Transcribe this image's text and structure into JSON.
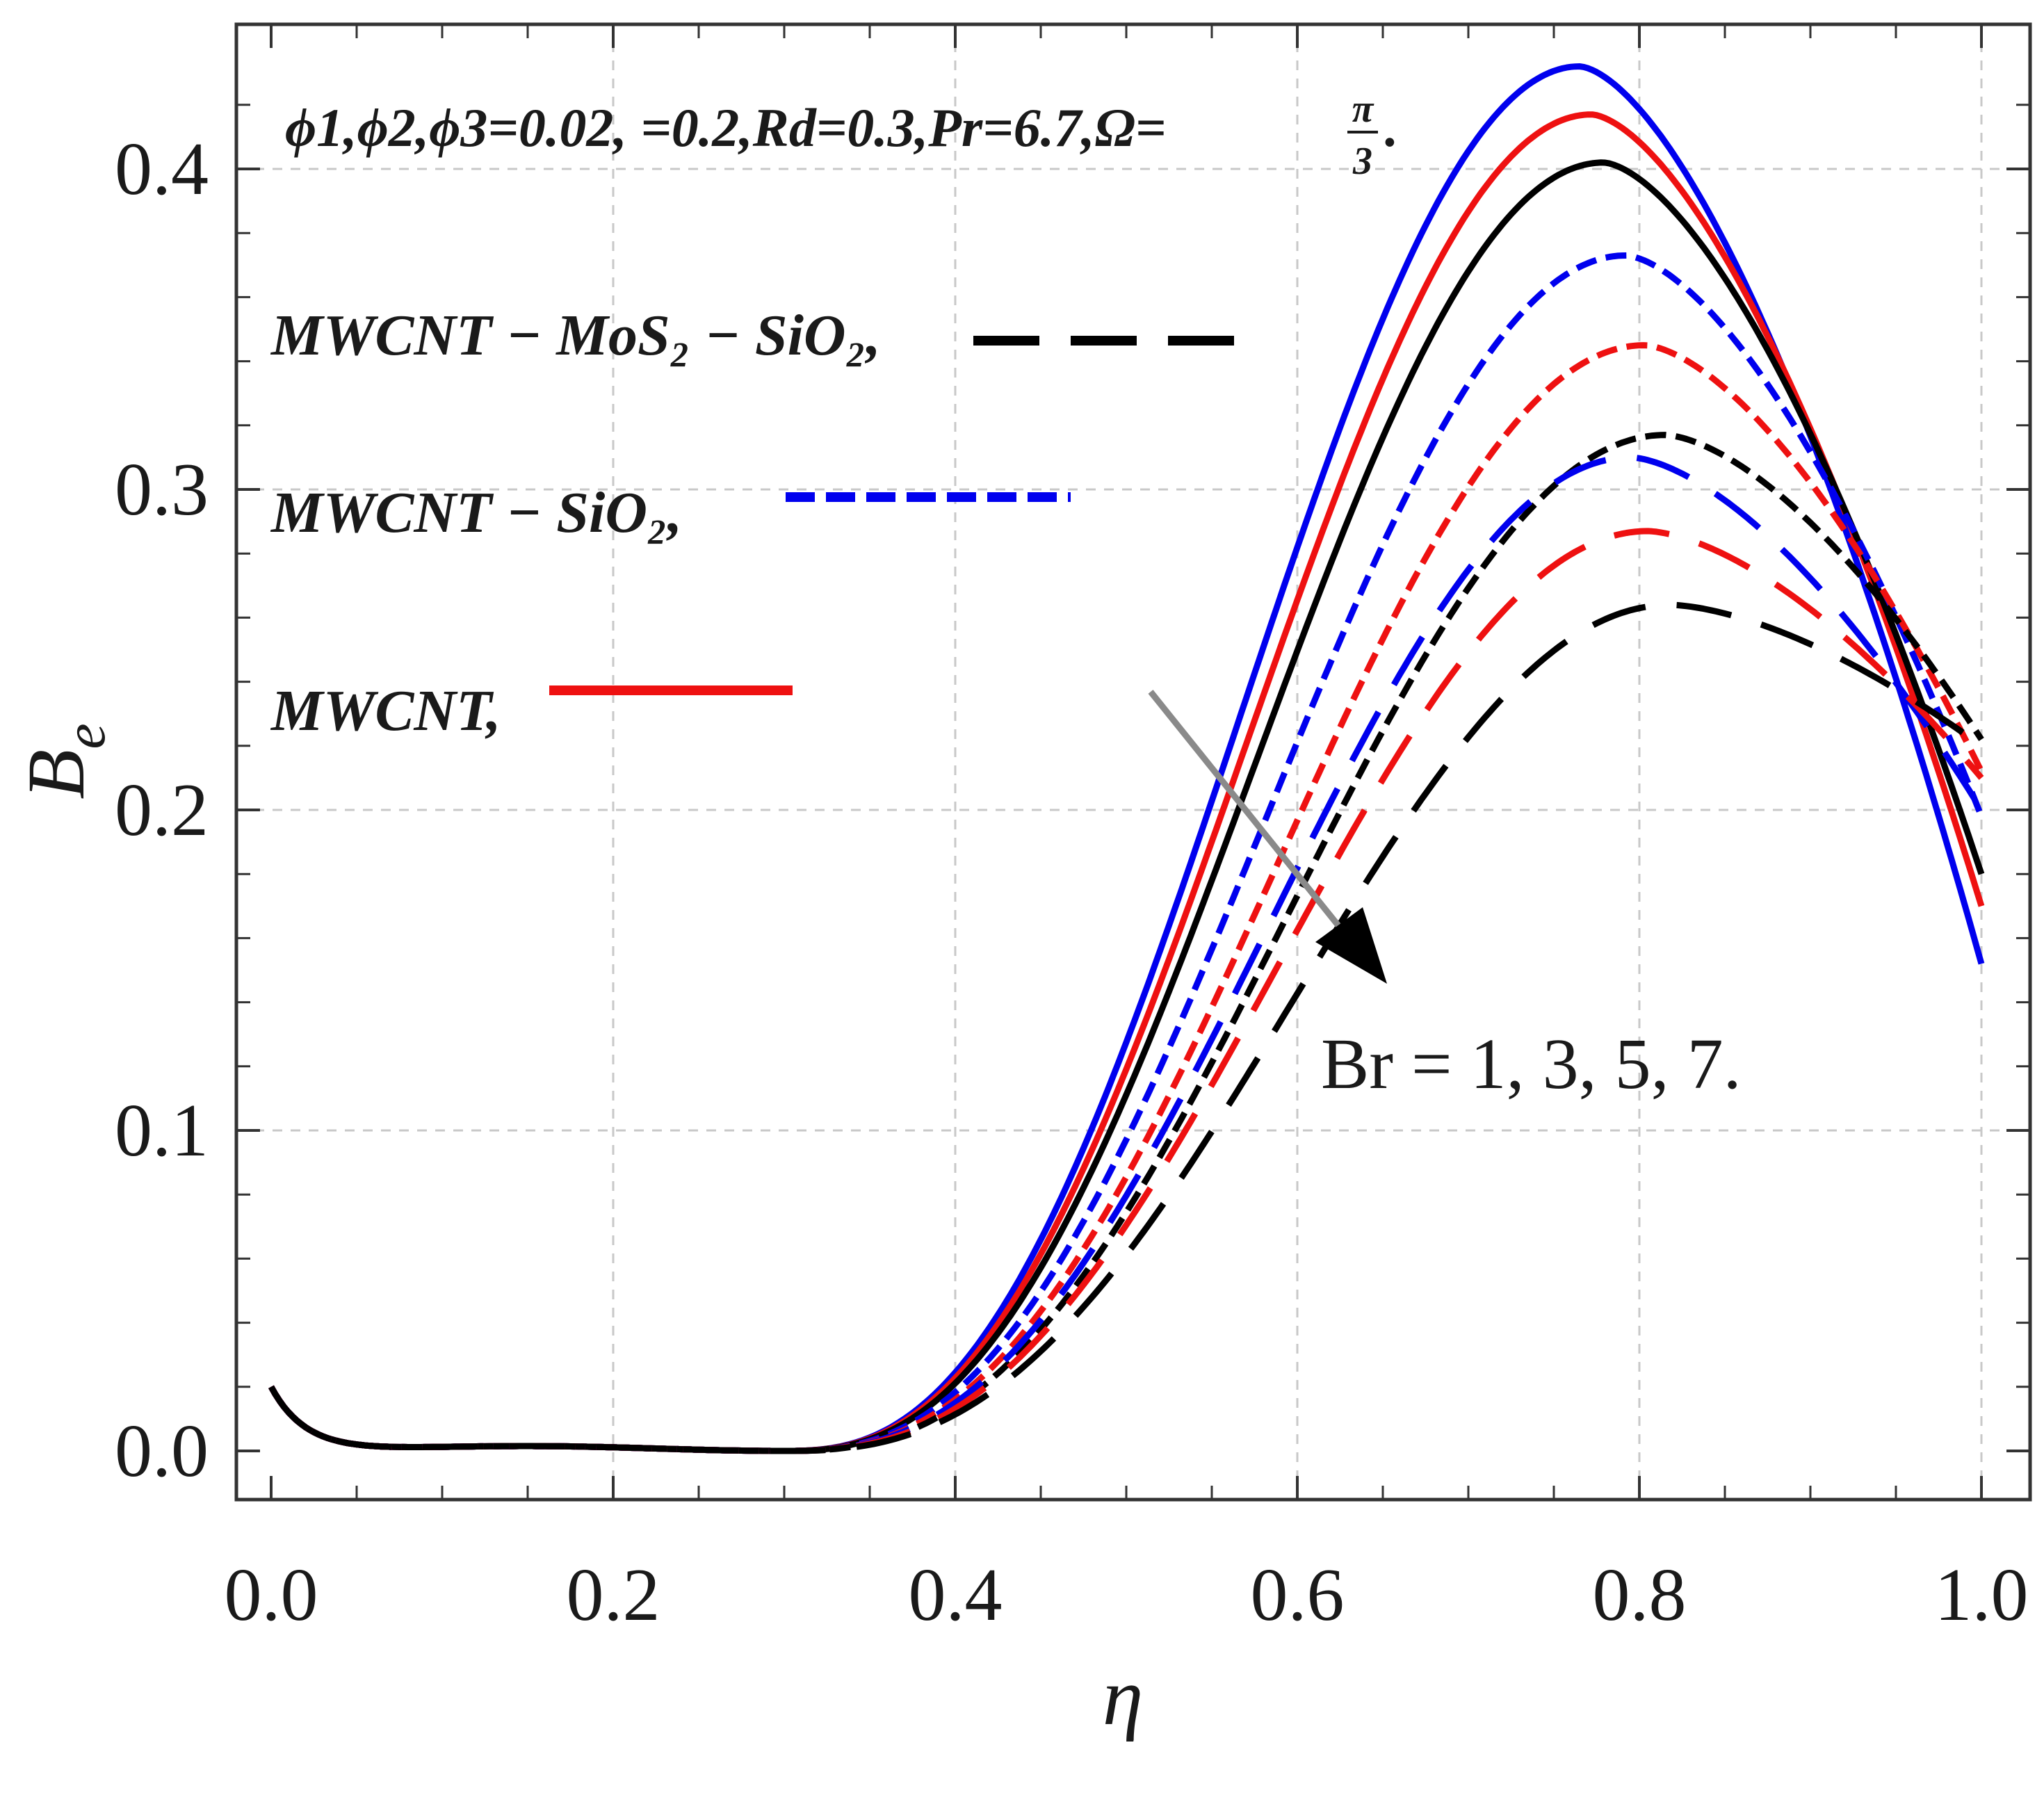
{
  "chart_data": {
    "type": "line",
    "xlabel": "η",
    "ylabel_main": "B",
    "ylabel_sub": "e",
    "xlim": [
      0.0,
      1.0
    ],
    "ylim": [
      -0.015,
      0.44
    ],
    "x_ticks": [
      0.0,
      0.2,
      0.4,
      0.6,
      0.8,
      1.0
    ],
    "x_tick_labels": [
      "0.0",
      "0.2",
      "0.4",
      "0.6",
      "0.8",
      "1.0"
    ],
    "y_ticks": [
      0.0,
      0.1,
      0.2,
      0.3,
      0.4
    ],
    "y_tick_labels": [
      "0.0",
      "0.1",
      "0.2",
      "0.3",
      "0.4"
    ],
    "grid": true,
    "annotation": {
      "prefix": "ϕ1,ϕ2,ϕ3=0.02, =0.2,Rd=0.3,Pr=6.7,Ω=",
      "frac_num": "π",
      "frac_den": "3",
      "suffix": "."
    },
    "arrow_annotation": "Br = 1, 3, 5, 7.",
    "legend": [
      {
        "label": "MWCNT − MoS₂ − SiO₂,",
        "style": "long-dash",
        "color": "#000000"
      },
      {
        "label": "MWCNT − SiO₂,",
        "style": "short-dash",
        "color": "#0000ee"
      },
      {
        "label": "MWCNT,",
        "style": "solid",
        "color": "#ee1111"
      }
    ],
    "br_values": [
      1,
      3,
      5,
      7
    ],
    "series": [
      {
        "name": "Br=1 MWCNT−SiO₂",
        "color": "#0000ee",
        "dash": "solid",
        "peak_x": 0.765,
        "peak_y": 0.432,
        "end_y": 0.152
      },
      {
        "name": "Br=1 MWCNT",
        "color": "#ee1111",
        "dash": "solid",
        "peak_x": 0.772,
        "peak_y": 0.417,
        "end_y": 0.17
      },
      {
        "name": "Br=1 MWCNT−MoS₂−SiO₂",
        "color": "#000000",
        "dash": "solid",
        "peak_x": 0.779,
        "peak_y": 0.402,
        "end_y": 0.18
      },
      {
        "name": "Br=3 MWCNT−SiO₂",
        "color": "#0000ee",
        "dash": "short",
        "peak_x": 0.792,
        "peak_y": 0.373,
        "end_y": 0.198
      },
      {
        "name": "Br=3 MWCNT",
        "color": "#ee1111",
        "dash": "short",
        "peak_x": 0.803,
        "peak_y": 0.345,
        "end_y": 0.212
      },
      {
        "name": "Br=5 MWCNT−MoS₂−SiO₂",
        "color": "#000000",
        "dash": "short",
        "peak_x": 0.815,
        "peak_y": 0.317,
        "end_y": 0.222
      },
      {
        "name": "Br=5 MWCNT−SiO₂",
        "color": "#0000ee",
        "dash": "long",
        "peak_x": 0.795,
        "peak_y": 0.31,
        "end_y": 0.2
      },
      {
        "name": "Br=7 MWCNT",
        "color": "#ee1111",
        "dash": "long",
        "peak_x": 0.805,
        "peak_y": 0.287,
        "end_y": 0.21
      },
      {
        "name": "Br=7 MWCNT−MoS₂−SiO₂",
        "color": "#000000",
        "dash": "long",
        "peak_x": 0.818,
        "peak_y": 0.264,
        "end_y": 0.22
      }
    ]
  }
}
